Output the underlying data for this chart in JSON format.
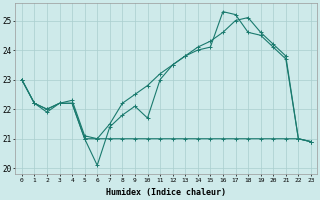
{
  "xlabel": "Humidex (Indice chaleur)",
  "background_color": "#ceeaea",
  "grid_color": "#aacece",
  "line_color": "#1a7a6e",
  "xlim": [
    -0.5,
    23.5
  ],
  "ylim": [
    19.8,
    25.6
  ],
  "yticks": [
    20,
    21,
    22,
    23,
    24,
    25
  ],
  "xticks": [
    0,
    1,
    2,
    3,
    4,
    5,
    6,
    7,
    8,
    9,
    10,
    11,
    12,
    13,
    14,
    15,
    16,
    17,
    18,
    19,
    20,
    21,
    22,
    23
  ],
  "series1_x": [
    0,
    1,
    2,
    3,
    4,
    5,
    6,
    7,
    8,
    9,
    10,
    11,
    12,
    13,
    14,
    15,
    16,
    17,
    18,
    19,
    20,
    21,
    22,
    23
  ],
  "series1_y": [
    23.0,
    22.2,
    21.9,
    22.2,
    22.2,
    21.0,
    20.1,
    21.4,
    21.8,
    22.1,
    21.7,
    23.0,
    23.5,
    23.8,
    24.0,
    24.1,
    25.3,
    25.2,
    24.6,
    24.5,
    24.1,
    23.7,
    21.0,
    20.9
  ],
  "series2_x": [
    0,
    1,
    2,
    3,
    4,
    5,
    6,
    7,
    8,
    9,
    10,
    11,
    12,
    13,
    14,
    15,
    16,
    17,
    18,
    19,
    20,
    21,
    22,
    23
  ],
  "series2_y": [
    23.0,
    22.2,
    22.0,
    22.2,
    22.2,
    21.0,
    21.0,
    21.0,
    21.0,
    21.0,
    21.0,
    21.0,
    21.0,
    21.0,
    21.0,
    21.0,
    21.0,
    21.0,
    21.0,
    21.0,
    21.0,
    21.0,
    21.0,
    20.9
  ],
  "series3_x": [
    0,
    1,
    2,
    3,
    4,
    5,
    6,
    7,
    8,
    9,
    10,
    11,
    12,
    13,
    14,
    15,
    16,
    17,
    18,
    19,
    20,
    21,
    22,
    23
  ],
  "series3_y": [
    23.0,
    22.2,
    22.0,
    22.2,
    22.3,
    21.1,
    21.0,
    21.5,
    22.2,
    22.5,
    22.8,
    23.2,
    23.5,
    23.8,
    24.1,
    24.3,
    24.6,
    25.0,
    25.1,
    24.6,
    24.2,
    23.8,
    21.0,
    20.9
  ]
}
